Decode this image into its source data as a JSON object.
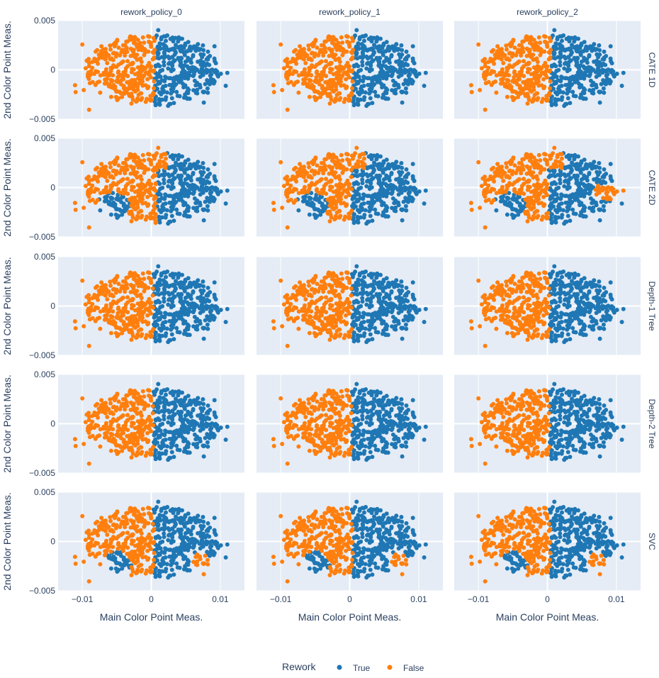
{
  "chart_data": {
    "type": "scatter",
    "facet_columns": [
      "rework_policy_0",
      "rework_policy_1",
      "rework_policy_2"
    ],
    "facet_rows": [
      "CATE 1D",
      "CATE 2D",
      "Depth-1 Tree",
      "Depth-2 Tree",
      "SVC"
    ],
    "xlabel": "Main Color Point Meas.",
    "ylabel": "2nd Color Point Meas.",
    "xlim": [
      -0.0135,
      0.0135
    ],
    "ylim": [
      -0.005,
      0.005
    ],
    "x_ticks": [
      -0.01,
      0,
      0.01
    ],
    "x_tick_labels": [
      "−0.01",
      "0",
      "0.01"
    ],
    "y_ticks": [
      -0.005,
      0,
      0.005
    ],
    "y_tick_labels": [
      "−0.005",
      "0",
      "0.005"
    ],
    "grid": true,
    "legend": {
      "title": "Rework",
      "position": "bottom-center",
      "entries": [
        {
          "name": "True",
          "color": "#1f77b4"
        },
        {
          "name": "False",
          "color": "#ff7f0e"
        }
      ]
    },
    "point_cloud": {
      "x_center": 0.0001,
      "x_spread": 0.0115,
      "y_spread": 0.0041
    },
    "decision_rules": {
      "CATE 1D": "vertical split near x=0.0005; x < split is False, else True",
      "Depth-1 Tree": "vertical split near x=0.0003; x < split is False, else True",
      "Depth-2 Tree": "vertical split near x=0.0003; x < split is False, else True",
      "CATE 2D": "False mostly left of split, True pocket near (-0.005,-0.0025), False tail on right for policy 2",
      "SVC": "False left region with True pocket near (-0.005,-0.0025), False island near (0.007,-0.0025)"
    }
  },
  "colors": {
    "true": "#1f77b4",
    "false": "#ff7f0e",
    "plot_bg": "#e5ecf6",
    "grid": "#ffffff",
    "text": "#2a3f5f"
  }
}
